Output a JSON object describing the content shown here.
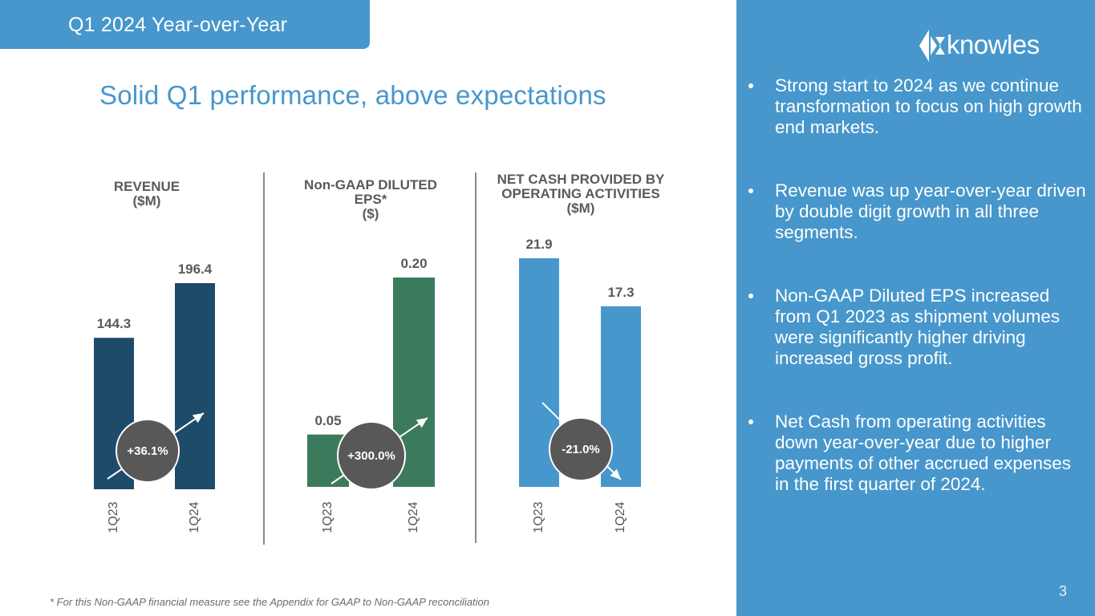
{
  "header": {
    "tab_title": "Q1 2024 Year-over-Year",
    "slide_title": "Solid Q1 performance, above expectations"
  },
  "logo": {
    "name": "knowles",
    "icon": "knowles-k-chevron-icon"
  },
  "colors": {
    "panel": "#4797cc",
    "revenue_bar": "#1f4b6b",
    "eps_bar": "#3b7b5c",
    "cash_bar": "#4797cc",
    "bubble": "#585858"
  },
  "chart_data": [
    {
      "type": "bar",
      "title": "REVENUE\n($M)",
      "title_lines": [
        "REVENUE",
        "($M)"
      ],
      "categories": [
        "1Q23",
        "1Q24"
      ],
      "values": [
        144.3,
        196.4
      ],
      "value_labels": [
        "144.3",
        "196.4"
      ],
      "change_label": "+36.1%",
      "trend": "up",
      "ylim": [
        0,
        196.4
      ],
      "xlabel": "",
      "ylabel": "",
      "grid": false
    },
    {
      "type": "bar",
      "title": "Non-GAAP DILUTED EPS* ($)",
      "title_lines": [
        "Non-GAAP DILUTED",
        "EPS*",
        "($)"
      ],
      "categories": [
        "1Q23",
        "1Q24"
      ],
      "values": [
        0.05,
        0.2
      ],
      "value_labels": [
        "0.05",
        "0.20"
      ],
      "change_label": "+300.0%",
      "trend": "up",
      "ylim": [
        0,
        0.2
      ],
      "xlabel": "",
      "ylabel": "",
      "grid": false
    },
    {
      "type": "bar",
      "title": "NET CASH PROVIDED BY OPERATING ACTIVITIES ($M)",
      "title_lines": [
        "NET CASH PROVIDED BY",
        "OPERATING ACTIVITIES",
        "($M)"
      ],
      "categories": [
        "1Q23",
        "1Q24"
      ],
      "values": [
        21.9,
        17.3
      ],
      "value_labels": [
        "21.9",
        "17.3"
      ],
      "change_label": "-21.0%",
      "trend": "down",
      "ylim": [
        0,
        21.9
      ],
      "xlabel": "",
      "ylabel": "",
      "grid": false
    }
  ],
  "bullets": [
    "Strong start to 2024 as we continue transformation to focus on high growth end markets.",
    "Revenue was up year-over-year driven by double digit growth in all three segments.",
    "Non-GAAP Diluted EPS increased from Q1 2023 as shipment volumes were significantly higher driving increased gross profit.",
    "Net Cash from operating activities down year-over-year due to higher payments of other accrued expenses in the first quarter of 2024."
  ],
  "footnote": "* For this Non-GAAP financial measure see the Appendix for GAAP to Non-GAAP reconciliation",
  "page_number": "3"
}
